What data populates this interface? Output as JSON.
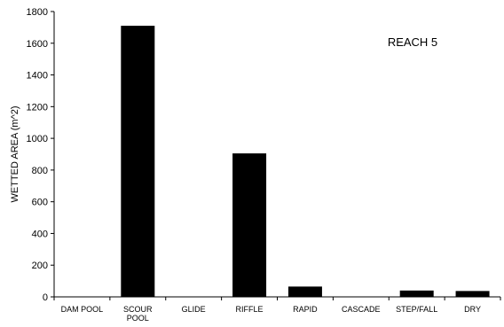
{
  "chart_data": {
    "type": "bar",
    "categories": [
      [
        "DAM POOL"
      ],
      [
        "SCOUR",
        "POOL"
      ],
      [
        "GLIDE"
      ],
      [
        "RIFFLE"
      ],
      [
        "RAPID"
      ],
      [
        "CASCADE"
      ],
      [
        "STEP/FALL"
      ],
      [
        "DRY"
      ]
    ],
    "values": [
      0,
      1710,
      0,
      905,
      65,
      0,
      40,
      37
    ],
    "ylabel": "WETTED AREA (m^2)",
    "xlabel": "",
    "ylim": [
      0,
      1800
    ],
    "yticks": [
      0,
      200,
      400,
      600,
      800,
      1000,
      1200,
      1400,
      1600,
      1800
    ],
    "annotation": "REACH 5",
    "grid": false,
    "bar_color": "#000000"
  }
}
